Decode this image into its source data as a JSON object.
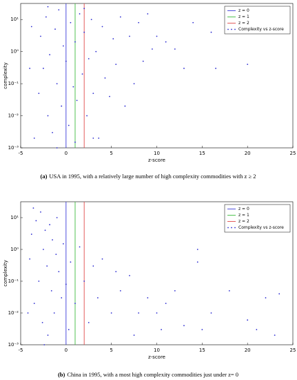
{
  "chart_data": [
    {
      "type": "scatter",
      "caption_label": "(a)",
      "caption": "USA in 1995, with a relatively large number of high complexity commodities with z ≥ 2",
      "xlabel": "z-score",
      "ylabel": "complexity",
      "log_y": true,
      "legend": "upper right",
      "xlim": [
        -5,
        25
      ],
      "xticks": [
        -5,
        0,
        5,
        10,
        15,
        20,
        25
      ],
      "ylim": [
        0.001,
        31.62
      ],
      "yticks": [
        {
          "value": 0.001,
          "label": "10⁻³"
        },
        {
          "value": 0.01,
          "label": "10⁻²"
        },
        {
          "value": 0.1,
          "label": "10⁻¹"
        },
        {
          "value": 1,
          "label": "10⁰"
        },
        {
          "value": 10,
          "label": "10¹"
        }
      ],
      "vlines": [
        {
          "name": "z = 0",
          "x": 0,
          "color": "#3b3bd9"
        },
        {
          "name": "z = 1",
          "x": 1,
          "color": "#3dbb3d"
        },
        {
          "name": "z = 2",
          "x": 2,
          "color": "#e04848"
        }
      ],
      "series": [
        {
          "name": "Complexity vs z-score",
          "color": "#2a2ad0",
          "x": [
            -3.5,
            -3,
            -2.8,
            -2.5,
            -2.2,
            -2,
            -1.8,
            -1.5,
            -1.2,
            -1,
            -0.8,
            -0.5,
            -0.3,
            0,
            0.3,
            0.5,
            0.8,
            1,
            1.2,
            1.5,
            1.8,
            2,
            2.3,
            2.5,
            2.8,
            3,
            3.3,
            3.6,
            4,
            4.3,
            4.8,
            5.2,
            5.5,
            6,
            6.5,
            7,
            7.5,
            8,
            8.5,
            9,
            9.5,
            10,
            11,
            12,
            13,
            14,
            16,
            16.5,
            20,
            -4,
            -3.8,
            -1,
            1,
            -2,
            2,
            3
          ],
          "values": [
            0.002,
            0.05,
            3,
            0.3,
            12,
            0.01,
            0.8,
            0.003,
            5,
            0.1,
            20,
            0.02,
            1.5,
            0.5,
            0.005,
            8,
            0.08,
            2,
            0.03,
            15,
            0.2,
            4,
            0.01,
            0.6,
            10,
            0.05,
            1,
            0.002,
            6,
            0.15,
            0.04,
            2.5,
            0.4,
            12,
            0.02,
            3,
            0.1,
            8,
            0.5,
            15,
            1.2,
            3,
            2,
            1.2,
            0.3,
            8,
            4,
            0.3,
            0.4,
            0.3,
            6,
            0.001,
            0.0015,
            25,
            22,
            0.002
          ]
        }
      ]
    },
    {
      "type": "scatter",
      "caption_label": "(b)",
      "caption": "China in 1995, with a most high complexity commodities just under z= 0",
      "xlabel": "z-score",
      "ylabel": "complexity",
      "log_y": true,
      "legend": "upper right",
      "xlim": [
        -5,
        25
      ],
      "xticks": [
        -5,
        0,
        5,
        10,
        15,
        20,
        25
      ],
      "ylim": [
        0.001,
        31.62
      ],
      "yticks": [
        {
          "value": 0.001,
          "label": "10⁻³"
        },
        {
          "value": 0.01,
          "label": "10⁻²"
        },
        {
          "value": 0.1,
          "label": "10⁻¹"
        },
        {
          "value": 1,
          "label": "10⁰"
        },
        {
          "value": 10,
          "label": "10¹"
        }
      ],
      "vlines": [
        {
          "name": "z = 0",
          "x": 0,
          "color": "#3b3bd9"
        },
        {
          "name": "z = 1",
          "x": 1,
          "color": "#3dbb3d"
        },
        {
          "name": "z = 2",
          "x": 2,
          "color": "#e04848"
        }
      ],
      "series": [
        {
          "name": "Complexity vs z-score",
          "color": "#2a2ad0",
          "x": [
            -4,
            -3.8,
            -3.5,
            -3.3,
            -3,
            -2.8,
            -2.6,
            -2.5,
            -2.3,
            -2.1,
            -2,
            -1.8,
            -1.6,
            -1.5,
            -1.3,
            -1.1,
            -1,
            -0.8,
            -0.5,
            -0.3,
            0,
            0.3,
            0.5,
            1,
            1.5,
            2,
            2.5,
            3,
            3.5,
            4,
            5,
            5.5,
            6,
            7,
            7.5,
            8,
            9,
            10,
            10.5,
            11,
            12,
            13,
            14.5,
            14.5,
            15,
            16,
            18,
            20,
            21,
            22,
            23.5,
            23,
            -4.2,
            -3.6,
            -2.4
          ],
          "values": [
            0.5,
            3,
            0.02,
            8,
            0.1,
            15,
            0.005,
            1,
            4,
            0.3,
            0.002,
            6,
            0.05,
            2,
            0.01,
            0.7,
            10,
            0.2,
            0.03,
            1.5,
            0.08,
            0.003,
            0.4,
            0.02,
            1.2,
            0.1,
            0.005,
            0.3,
            0.03,
            0.5,
            0.01,
            0.2,
            0.05,
            0.15,
            0.002,
            0.01,
            0.03,
            0.01,
            0.003,
            0.02,
            0.05,
            0.004,
            1,
            0.4,
            0.003,
            0.01,
            0.05,
            0.006,
            0.003,
            0.03,
            0.04,
            0.002,
            0.01,
            20,
            0.001
          ]
        }
      ]
    }
  ]
}
